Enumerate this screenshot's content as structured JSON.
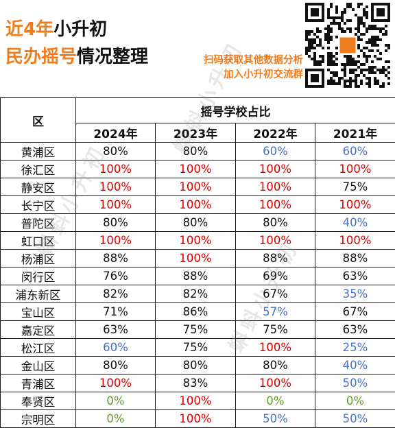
{
  "header": {
    "title_line1": {
      "orange": "近4年",
      "black": "小升初"
    },
    "title_line2": {
      "orange": "民办摇号",
      "black": "情况整理"
    },
    "promo_line1": "扫码获取其他数据分析",
    "promo_line2": "加入小升初交流群",
    "qr_icon": "qr-code-icon"
  },
  "table": {
    "district_header": "区",
    "group_header": "摇号学校占比",
    "years": [
      "2024年",
      "2023年",
      "2022年",
      "2021年"
    ],
    "rows": [
      {
        "district": "黄浦区",
        "values": [
          {
            "v": "80%",
            "c": "black"
          },
          {
            "v": "80%",
            "c": "black"
          },
          {
            "v": "60%",
            "c": "blue"
          },
          {
            "v": "60%",
            "c": "blue"
          }
        ]
      },
      {
        "district": "徐汇区",
        "values": [
          {
            "v": "100%",
            "c": "red"
          },
          {
            "v": "100%",
            "c": "red"
          },
          {
            "v": "100%",
            "c": "red"
          },
          {
            "v": "100%",
            "c": "red"
          }
        ]
      },
      {
        "district": "静安区",
        "values": [
          {
            "v": "100%",
            "c": "red"
          },
          {
            "v": "100%",
            "c": "red"
          },
          {
            "v": "100%",
            "c": "red"
          },
          {
            "v": "75%",
            "c": "black"
          }
        ]
      },
      {
        "district": "长宁区",
        "values": [
          {
            "v": "100%",
            "c": "red"
          },
          {
            "v": "100%",
            "c": "red"
          },
          {
            "v": "100%",
            "c": "red"
          },
          {
            "v": "100%",
            "c": "red"
          }
        ]
      },
      {
        "district": "普陀区",
        "values": [
          {
            "v": "80%",
            "c": "black"
          },
          {
            "v": "80%",
            "c": "black"
          },
          {
            "v": "80%",
            "c": "black"
          },
          {
            "v": "40%",
            "c": "blue"
          }
        ]
      },
      {
        "district": "虹口区",
        "values": [
          {
            "v": "100%",
            "c": "red"
          },
          {
            "v": "100%",
            "c": "red"
          },
          {
            "v": "100%",
            "c": "red"
          },
          {
            "v": "100%",
            "c": "red"
          }
        ]
      },
      {
        "district": "杨浦区",
        "values": [
          {
            "v": "88%",
            "c": "black"
          },
          {
            "v": "100%",
            "c": "red"
          },
          {
            "v": "88%",
            "c": "black"
          },
          {
            "v": "88%",
            "c": "black"
          }
        ]
      },
      {
        "district": "闵行区",
        "values": [
          {
            "v": "76%",
            "c": "black"
          },
          {
            "v": "88%",
            "c": "black"
          },
          {
            "v": "69%",
            "c": "black"
          },
          {
            "v": "63%",
            "c": "black"
          }
        ]
      },
      {
        "district": "浦东新区",
        "values": [
          {
            "v": "82%",
            "c": "black"
          },
          {
            "v": "82%",
            "c": "black"
          },
          {
            "v": "67%",
            "c": "black"
          },
          {
            "v": "35%",
            "c": "blue"
          }
        ]
      },
      {
        "district": "宝山区",
        "values": [
          {
            "v": "71%",
            "c": "black"
          },
          {
            "v": "86%",
            "c": "black"
          },
          {
            "v": "57%",
            "c": "blue"
          },
          {
            "v": "67%",
            "c": "black"
          }
        ]
      },
      {
        "district": "嘉定区",
        "values": [
          {
            "v": "63%",
            "c": "black"
          },
          {
            "v": "75%",
            "c": "black"
          },
          {
            "v": "75%",
            "c": "black"
          },
          {
            "v": "63%",
            "c": "black"
          }
        ]
      },
      {
        "district": "松江区",
        "values": [
          {
            "v": "60%",
            "c": "blue"
          },
          {
            "v": "75%",
            "c": "black"
          },
          {
            "v": "100%",
            "c": "red"
          },
          {
            "v": "25%",
            "c": "blue"
          }
        ]
      },
      {
        "district": "金山区",
        "values": [
          {
            "v": "80%",
            "c": "black"
          },
          {
            "v": "80%",
            "c": "black"
          },
          {
            "v": "80%",
            "c": "black"
          },
          {
            "v": "40%",
            "c": "blue"
          }
        ]
      },
      {
        "district": "青浦区",
        "values": [
          {
            "v": "100%",
            "c": "red"
          },
          {
            "v": "83%",
            "c": "black"
          },
          {
            "v": "100%",
            "c": "red"
          },
          {
            "v": "50%",
            "c": "blue"
          }
        ]
      },
      {
        "district": "奉贤区",
        "values": [
          {
            "v": "0%",
            "c": "green"
          },
          {
            "v": "100%",
            "c": "red"
          },
          {
            "v": "0%",
            "c": "green"
          },
          {
            "v": "0%",
            "c": "green"
          }
        ]
      },
      {
        "district": "宗明区",
        "values": [
          {
            "v": "0%",
            "c": "green"
          },
          {
            "v": "100%",
            "c": "red"
          },
          {
            "v": "50%",
            "c": "blue"
          },
          {
            "v": "50%",
            "c": "blue"
          }
        ]
      }
    ]
  },
  "colors": {
    "orange": "#f07d1d",
    "red": "#d40000",
    "black": "#111111",
    "blue": "#4a72c4",
    "green": "#5f9b2a"
  },
  "watermark": {
    "text": "蝌蚪小升初",
    "icon": "watermark"
  }
}
